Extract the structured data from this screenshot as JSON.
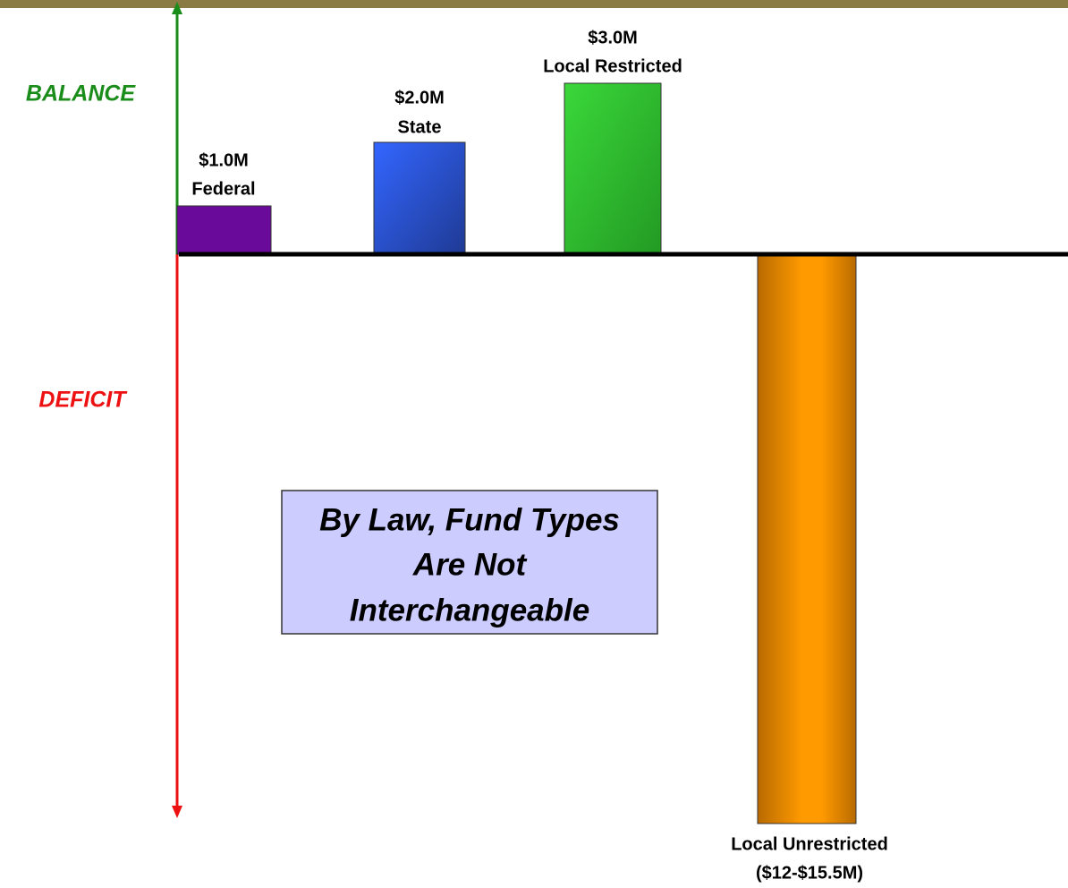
{
  "axis": {
    "upper": "BALANCE",
    "lower": "DEFICIT"
  },
  "bars": [
    {
      "amount": "$1.0M",
      "name": "Federal"
    },
    {
      "amount": "$2.0M",
      "name": "State"
    },
    {
      "amount": "$3.0M",
      "name": "Local Restricted"
    },
    {
      "name": "Local Unrestricted",
      "amount": "($12-$15.5M)"
    }
  ],
  "note": {
    "lines": [
      "By Law, Fund Types",
      "Are Not",
      "Interchangeable"
    ]
  }
}
